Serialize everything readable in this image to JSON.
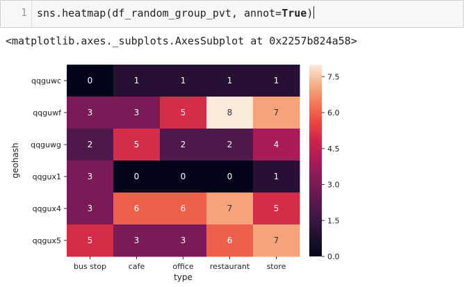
{
  "cell": {
    "prompt_number": "1",
    "code_prefix": "sns.heatmap(df_random_group_pvt, annot=",
    "code_bool": "True",
    "code_suffix": ")"
  },
  "output": {
    "repr_text": "<matplotlib.axes._subplots.AxesSubplot at 0x2257b824a58>"
  },
  "chart_data": {
    "type": "heatmap",
    "title": "",
    "xlabel": "type",
    "ylabel": "geohash",
    "x_categories": [
      "bus stop",
      "cafe",
      "office",
      "restaurant",
      "store"
    ],
    "y_categories": [
      "qqguwc",
      "qqguwf",
      "qqguwg",
      "qqgux1",
      "qqgux4",
      "qqgux5"
    ],
    "values": [
      [
        0,
        1,
        1,
        1,
        1
      ],
      [
        3,
        3,
        5,
        8,
        7
      ],
      [
        2,
        5,
        2,
        2,
        4
      ],
      [
        3,
        0,
        0,
        0,
        1
      ],
      [
        3,
        6,
        6,
        7,
        5
      ],
      [
        5,
        3,
        3,
        6,
        7
      ]
    ],
    "vmin": 0,
    "vmax": 8,
    "colormap": "rocket",
    "colorbar_ticks": [
      "0.0",
      "1.5",
      "3.0",
      "4.5",
      "6.0",
      "7.5"
    ],
    "colorbar_tick_values": [
      0.0,
      1.5,
      3.0,
      4.5,
      6.0,
      7.5
    ],
    "annotated": true
  }
}
